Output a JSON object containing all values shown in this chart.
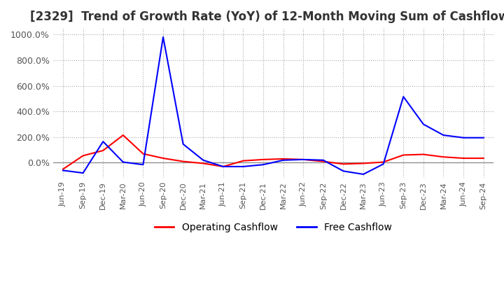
{
  "title": "[2329]  Trend of Growth Rate (YoY) of 12-Month Moving Sum of Cashflows",
  "title_fontsize": 12,
  "ylim": [
    -120,
    1050
  ],
  "yticks": [
    0,
    200,
    400,
    600,
    800,
    1000
  ],
  "ytick_labels": [
    "0.0%",
    "200.0%",
    "400.0%",
    "600.0%",
    "800.0%",
    "1000.0%"
  ],
  "background_color": "#ffffff",
  "grid_color": "#aaaaaa",
  "legend_labels": [
    "Operating Cashflow",
    "Free Cashflow"
  ],
  "operating_color": "#ff0000",
  "free_color": "#0000ff",
  "x_labels": [
    "Jun-19",
    "Sep-19",
    "Dec-19",
    "Mar-20",
    "Jun-20",
    "Sep-20",
    "Dec-20",
    "Mar-21",
    "Jun-21",
    "Sep-21",
    "Dec-21",
    "Mar-22",
    "Jun-22",
    "Sep-22",
    "Dec-22",
    "Mar-23",
    "Jun-23",
    "Sep-23",
    "Dec-23",
    "Mar-24",
    "Jun-24",
    "Sep-24"
  ],
  "operating_cashflow": [
    -50,
    55,
    95,
    215,
    70,
    35,
    10,
    -5,
    -30,
    15,
    25,
    30,
    25,
    10,
    -10,
    -5,
    5,
    60,
    65,
    45,
    35,
    35
  ],
  "free_cashflow": [
    -60,
    -80,
    165,
    5,
    -15,
    980,
    145,
    20,
    -30,
    -30,
    -15,
    20,
    25,
    20,
    -65,
    -90,
    -10,
    515,
    300,
    215,
    195,
    195
  ]
}
